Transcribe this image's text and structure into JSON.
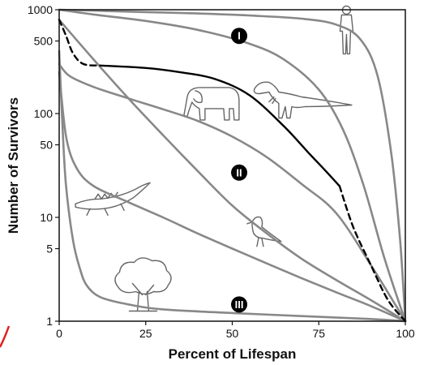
{
  "chart_data": {
    "type": "line",
    "xlabel": "Percent of Lifespan",
    "ylabel": "Number of Survivors",
    "xlim": [
      0,
      100
    ],
    "ylim": [
      1,
      1000
    ],
    "yscale": "log",
    "grid": false,
    "x_ticks": [
      0,
      25,
      50,
      75,
      100
    ],
    "x_tick_labels": [
      "0",
      "25",
      "50",
      "75",
      "100"
    ],
    "y_ticks": [
      1,
      5,
      10,
      50,
      100,
      500,
      1000
    ],
    "y_tick_labels": [
      "1",
      "5",
      "10",
      "50",
      "100",
      "500",
      "1000"
    ],
    "region_labels": [
      {
        "text": "I",
        "x": 52,
        "y": 560
      },
      {
        "text": "II",
        "x": 52,
        "y": 27
      },
      {
        "text": "III",
        "x": 52,
        "y": 1.45
      }
    ],
    "series": [
      {
        "style": "gray",
        "x": [
          0,
          10,
          25,
          40,
          55,
          70,
          80,
          87,
          92,
          96,
          98.5,
          100
        ],
        "y": [
          1000,
          980,
          950,
          920,
          880,
          820,
          720,
          520,
          230,
          40,
          6,
          1
        ]
      },
      {
        "style": "gray",
        "x": [
          0,
          10,
          25,
          40,
          55,
          65,
          75,
          82,
          88,
          94,
          100
        ],
        "y": [
          1000,
          900,
          780,
          640,
          470,
          330,
          170,
          70,
          20,
          4,
          1
        ]
      },
      {
        "style": "gray",
        "x": [
          0,
          3,
          10,
          20,
          30,
          40,
          50,
          60,
          70,
          80,
          90,
          100
        ],
        "y": [
          300,
          230,
          180,
          140,
          110,
          85,
          60,
          38,
          21,
          11,
          3.5,
          1
        ]
      },
      {
        "style": "gray",
        "x": [
          0,
          10,
          20,
          30,
          40,
          50,
          60,
          70,
          80,
          90,
          100
        ],
        "y": [
          800,
          330,
          140,
          62,
          28,
          13,
          7,
          4,
          2.5,
          1.6,
          1
        ]
      },
      {
        "style": "gray",
        "x": [
          0,
          2,
          5,
          10,
          20,
          30,
          40,
          50,
          60,
          70,
          80,
          90,
          100
        ],
        "y": [
          250,
          60,
          30,
          20,
          14,
          10,
          7,
          5,
          3.6,
          2.6,
          1.9,
          1.4,
          1
        ]
      },
      {
        "style": "gray",
        "x": [
          0,
          1,
          2,
          4,
          6,
          8,
          12,
          20,
          30,
          50,
          70,
          90,
          100
        ],
        "y": [
          400,
          70,
          20,
          6,
          3.2,
          2.2,
          1.7,
          1.45,
          1.3,
          1.2,
          1.12,
          1.05,
          1
        ]
      },
      {
        "style": "black-solid",
        "x": [
          12,
          25,
          35,
          45,
          55,
          65,
          72,
          77,
          81
        ],
        "y": [
          290,
          275,
          250,
          215,
          150,
          75,
          42,
          28,
          20
        ]
      },
      {
        "style": "black-dashed",
        "x": [
          0,
          2,
          4,
          7,
          12
        ],
        "y": [
          800,
          560,
          380,
          300,
          290
        ]
      },
      {
        "style": "black-dashed",
        "x": [
          81,
          85,
          90,
          95,
          100
        ],
        "y": [
          20,
          8,
          3.5,
          1.6,
          1
        ]
      }
    ],
    "icons": [
      {
        "name": "human-icon",
        "x": 83,
        "y": 600
      },
      {
        "name": "t-rex-icon",
        "x": 70,
        "y": 150
      },
      {
        "name": "elephant-icon",
        "x": 44,
        "y": 120
      },
      {
        "name": "crocodile-icon",
        "x": 15,
        "y": 14
      },
      {
        "name": "bird-icon",
        "x": 59,
        "y": 7
      },
      {
        "name": "tree-icon",
        "x": 24,
        "y": 2
      }
    ],
    "colors": {
      "gray": "#888888",
      "black": "#000000",
      "accent": "#e02020"
    }
  }
}
